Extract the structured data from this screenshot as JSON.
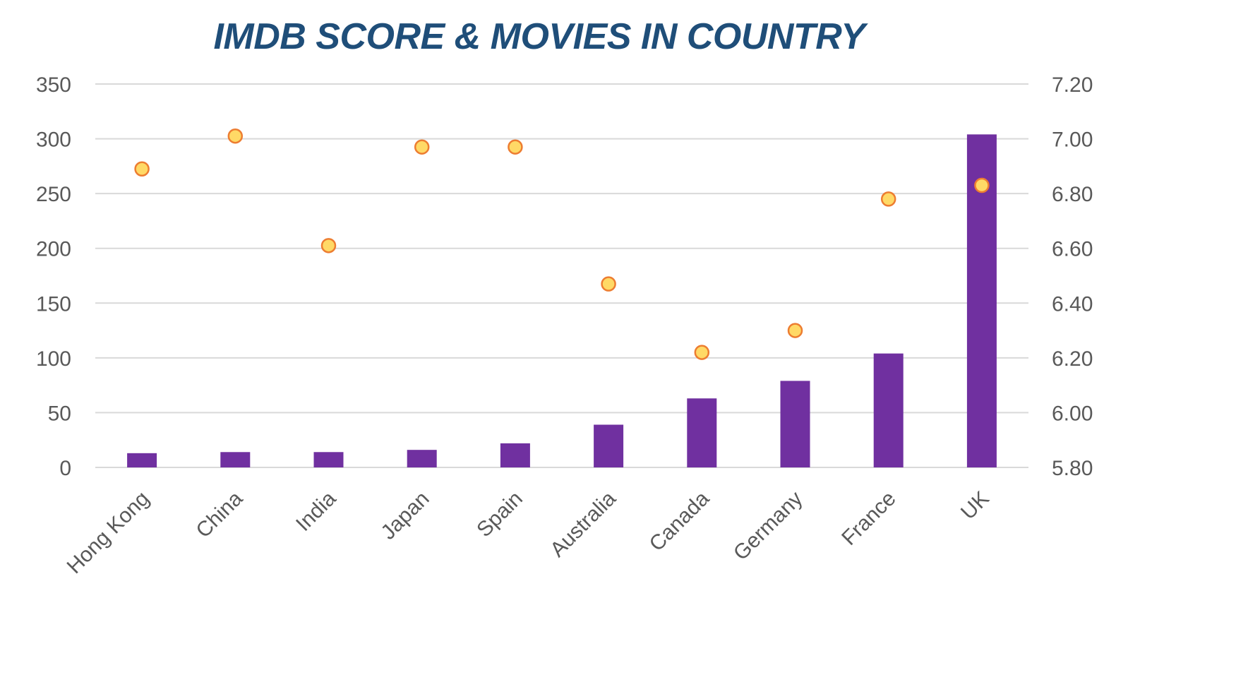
{
  "chart_data": {
    "type": "bar",
    "title": "IMDB SCORE & MOVIES IN COUNTRY",
    "categories": [
      "Hong Kong",
      "China",
      "India",
      "Japan",
      "Spain",
      "Australia",
      "Canada",
      "Germany",
      "France",
      "UK"
    ],
    "series": [
      {
        "type": "bar",
        "axis": "left",
        "values": [
          13,
          14,
          14,
          16,
          22,
          39,
          63,
          79,
          104,
          304
        ],
        "color": "#7030a0"
      },
      {
        "type": "scatter",
        "axis": "right",
        "values": [
          6.89,
          7.01,
          6.61,
          6.97,
          6.97,
          6.47,
          6.22,
          6.3,
          6.78,
          6.83
        ],
        "color": "#ffd966",
        "stroke": "#ed7d31"
      }
    ],
    "ylim_left": [
      0,
      350
    ],
    "yticks_left": [
      "0",
      "50",
      "100",
      "150",
      "200",
      "250",
      "300",
      "350"
    ],
    "ylim_right": [
      5.8,
      7.2
    ],
    "yticks_right": [
      "5.80",
      "6.00",
      "6.20",
      "6.40",
      "6.60",
      "6.80",
      "7.00",
      "7.20"
    ],
    "grid": true,
    "legend": "none",
    "colors": {
      "title": "#1f4e79",
      "grid": "#d9d9d9",
      "text": "#595959"
    }
  }
}
